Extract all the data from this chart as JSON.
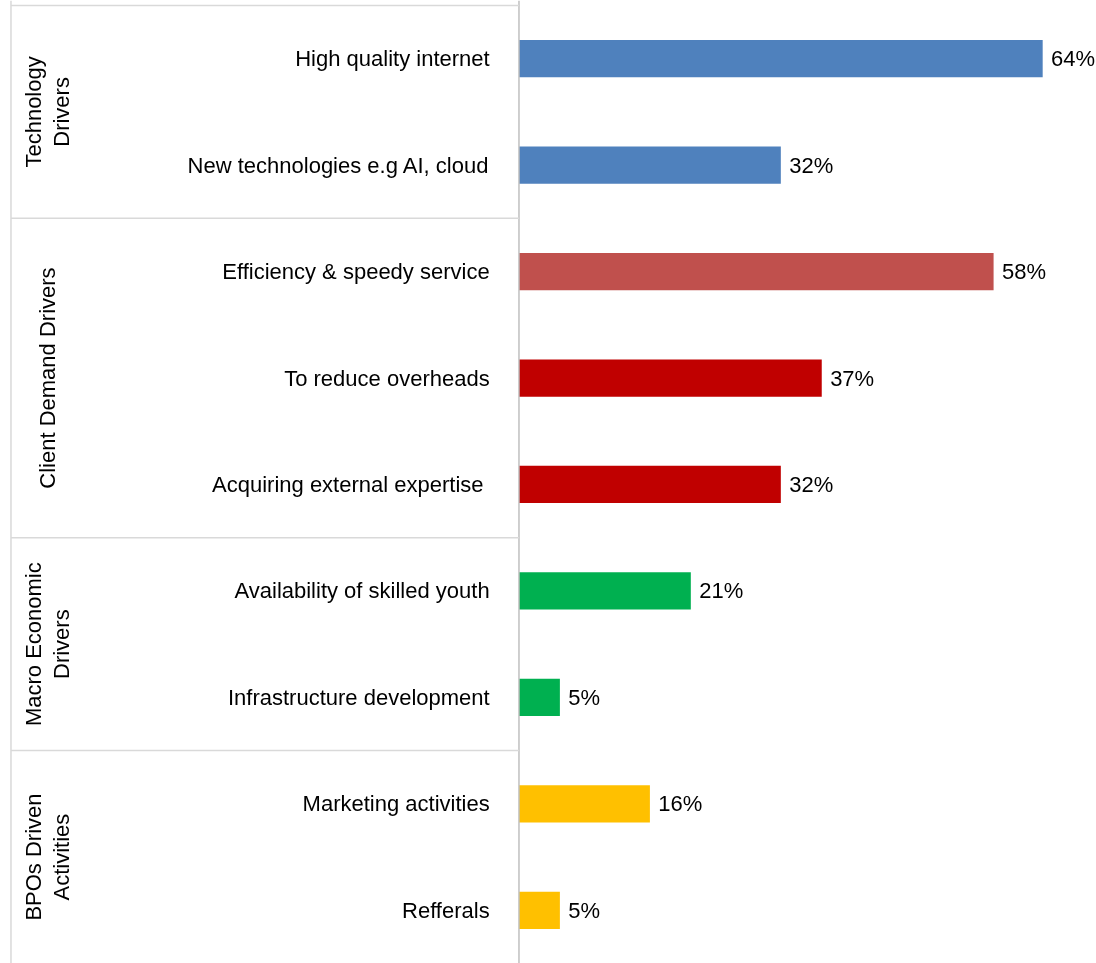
{
  "chart_data": {
    "type": "bar",
    "orientation": "horizontal",
    "categories": [
      "High quality internet",
      "New technologies e.g AI, cloud",
      "Efficiency & speedy service",
      "To reduce overheads",
      "Acquiring  external expertise",
      "Availability of skilled youth",
      "Infrastructure development",
      "Marketing activities",
      "Refferals"
    ],
    "series": [
      {
        "colors": [
          "#4f81bd",
          "#4f81bd",
          null,
          null,
          null,
          null,
          null,
          null,
          null
        ],
        "values": [
          64,
          32,
          null,
          null,
          null,
          null,
          null,
          null,
          null
        ],
        "value_labels": [
          "64%",
          "32%",
          null,
          null,
          null,
          null,
          null,
          null,
          null
        ]
      },
      {
        "colors": [
          null,
          null,
          "#c0504d",
          "#c00000",
          "#c00000",
          null,
          null,
          null,
          null
        ],
        "values": [
          null,
          null,
          58,
          37,
          32,
          null,
          null,
          null,
          null
        ],
        "value_labels": [
          null,
          null,
          "58%",
          "37%",
          "32%",
          null,
          null,
          null,
          null
        ]
      },
      {
        "colors": [
          null,
          null,
          null,
          null,
          null,
          "#00b050",
          "#00b050",
          null,
          null
        ],
        "values": [
          null,
          null,
          null,
          null,
          null,
          21,
          5,
          null,
          null
        ],
        "value_labels": [
          null,
          null,
          null,
          null,
          null,
          "21%",
          "5%",
          null,
          null
        ]
      },
      {
        "colors": [
          null,
          null,
          null,
          null,
          null,
          null,
          null,
          "#ffc000",
          "#ffc000"
        ],
        "values": [
          null,
          null,
          null,
          null,
          null,
          null,
          null,
          16,
          5
        ],
        "value_labels": [
          null,
          null,
          null,
          null,
          null,
          null,
          null,
          "16%",
          "5%"
        ]
      }
    ],
    "annotations": [
      "Technology Drivers",
      "Client Demand Drivers",
      "Macro Economic Drivers",
      "BPOs Driven Activities"
    ],
    "grid": false
  }
}
